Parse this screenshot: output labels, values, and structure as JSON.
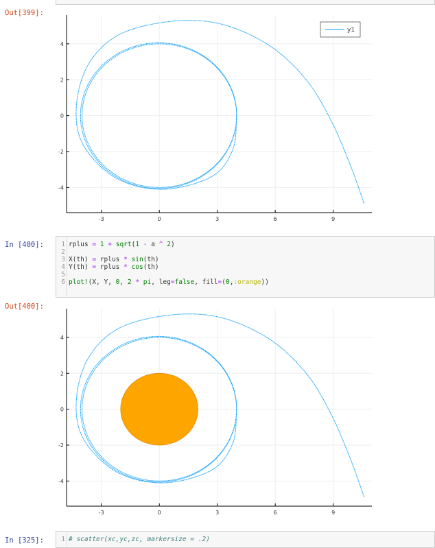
{
  "cells": {
    "out399": {
      "prompt": "Out[399]:"
    },
    "in400": {
      "prompt": "In [400]:",
      "lines": [
        {
          "num": "1",
          "code": "rplus = 1 + sqrt(1 - a ^ 2)"
        },
        {
          "num": "2",
          "code": ""
        },
        {
          "num": "3",
          "code": "X(th) = rplus * sin(th)"
        },
        {
          "num": "4",
          "code": "Y(th) = rplus * cos(th)"
        },
        {
          "num": "5",
          "code": ""
        },
        {
          "num": "6",
          "code": "plot!(X, Y, 0, 2 * pi, leg=false, fill=(0,:orange))"
        }
      ]
    },
    "out400": {
      "prompt": "Out[400]:"
    },
    "in325": {
      "prompt": "In [325]:",
      "lines": [
        {
          "num": "1",
          "code": "# scatter(xc,yc,zc, markersize = .2)"
        }
      ]
    }
  },
  "plots": {
    "xticks": [
      "-3",
      "0",
      "3",
      "6",
      "9"
    ],
    "yticks": [
      "4",
      "2",
      "0",
      "-2",
      "-4"
    ],
    "legend_label": "y1",
    "colors": {
      "line": "#009af9",
      "fill": "#ffa500",
      "fill_stroke": "#e08a00",
      "axis": "#000000",
      "grid": "#eeeeee"
    }
  },
  "chart_data": [
    {
      "type": "line",
      "series": [
        {
          "name": "y1",
          "description": "geodesic spiral orbit around black hole"
        }
      ],
      "xticks": [
        -3,
        0,
        3,
        6,
        9
      ],
      "yticks": [
        -4,
        -2,
        0,
        2,
        4
      ],
      "xlim": [
        -4.8,
        11.0
      ],
      "ylim": [
        -5.4,
        5.6
      ],
      "grid": true,
      "legend": "top-right"
    },
    {
      "type": "line",
      "series": [
        {
          "values": "geodesic spiral orbit (same as above)"
        },
        {
          "values": "filled horizon circle of radius 2 centered at origin, orange"
        }
      ],
      "xticks": [
        -3,
        0,
        3,
        6,
        9
      ],
      "yticks": [
        -4,
        -2,
        0,
        2,
        4
      ],
      "xlim": [
        -4.8,
        11.0
      ],
      "ylim": [
        -5.4,
        5.6
      ],
      "grid": true,
      "legend": "none"
    }
  ]
}
